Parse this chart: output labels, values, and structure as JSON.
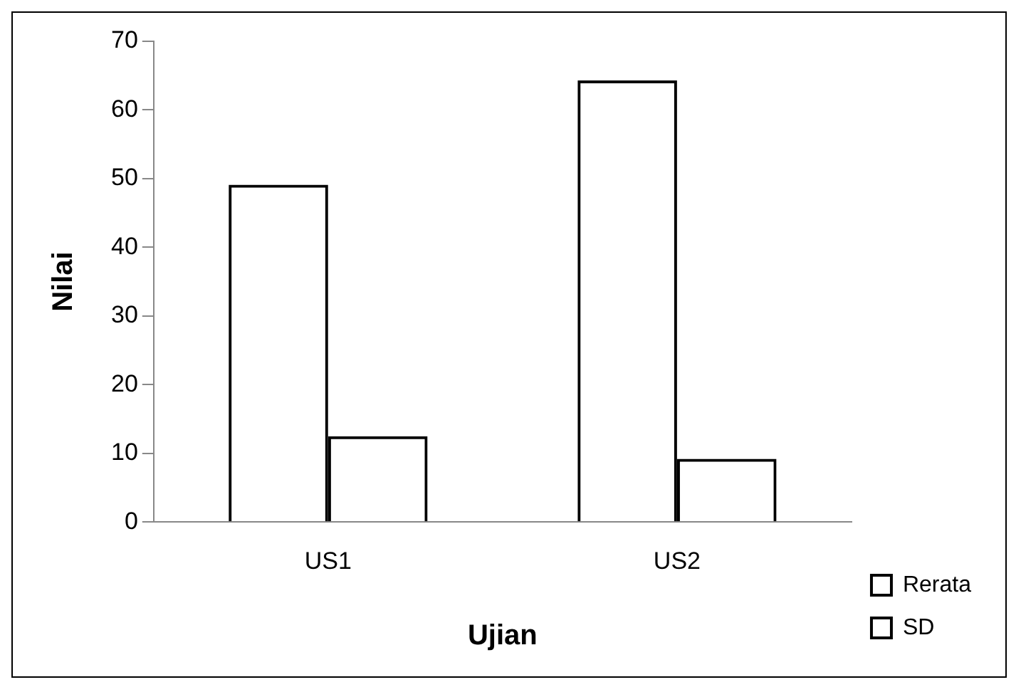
{
  "chart_data": {
    "type": "bar",
    "xlabel": "Ujian",
    "ylabel": "Nilai",
    "categories": [
      "US1",
      "US2"
    ],
    "series": [
      {
        "name": "Rerata",
        "color": "#000000",
        "values": [
          49.1,
          64.3
        ]
      },
      {
        "name": "SD",
        "color": "#000000",
        "values": [
          12.5,
          9.2
        ]
      }
    ],
    "ylim": [
      0,
      70
    ],
    "yticks": [
      0,
      10,
      20,
      30,
      40,
      50,
      60,
      70
    ],
    "grid": false,
    "legend": "right"
  }
}
